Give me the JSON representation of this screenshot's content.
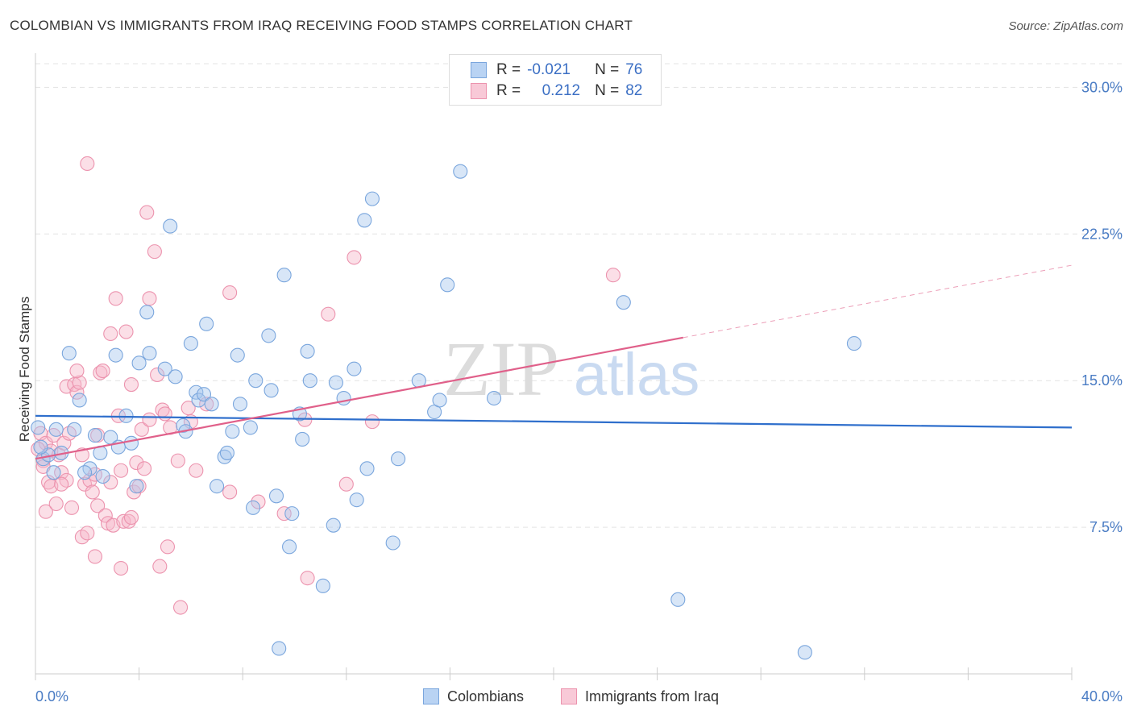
{
  "title": "COLOMBIAN VS IMMIGRANTS FROM IRAQ RECEIVING FOOD STAMPS CORRELATION CHART",
  "source": "Source: ZipAtlas.com",
  "watermark": {
    "zip": "ZIP",
    "atlas": "atlas"
  },
  "legend": {
    "rows": [
      {
        "r_label": "R =",
        "r_value": "-0.021",
        "n_label": "N =",
        "n_value": "76"
      },
      {
        "r_label": "R =",
        "r_value": "0.212",
        "n_label": "N =",
        "n_value": "82"
      }
    ]
  },
  "colors": {
    "blue_fill": "#a9c8ee",
    "blue_stroke": "#7aa6dd",
    "blue_line": "#2f6fcc",
    "pink_fill": "#f6b8ca",
    "pink_stroke": "#ec93ae",
    "pink_line": "#e0608a",
    "label_blue": "#4a7cc4",
    "grid": "#e3e3e3"
  },
  "chart_data": {
    "type": "scatter",
    "title": "COLOMBIAN VS IMMIGRANTS FROM IRAQ RECEIVING FOOD STAMPS CORRELATION CHART",
    "xlabel": "",
    "ylabel": "Receiving Food Stamps",
    "xlim": [
      0,
      40
    ],
    "ylim": [
      0,
      31.5
    ],
    "x_tick_labels": [
      "0.0%",
      "40.0%"
    ],
    "y_ticks": [
      7.5,
      15.0,
      22.5,
      30.0
    ],
    "y_tick_labels": [
      "7.5%",
      "15.0%",
      "22.5%",
      "30.0%"
    ],
    "grid": true,
    "series": [
      {
        "name": "Colombians",
        "r": -0.021,
        "n": 76,
        "trend": {
          "x": [
            0,
            40
          ],
          "y": [
            13.2,
            12.6
          ]
        },
        "points": [
          [
            0.1,
            12.6
          ],
          [
            0.3,
            11.0
          ],
          [
            0.5,
            11.2
          ],
          [
            0.7,
            10.3
          ],
          [
            1.0,
            11.3
          ],
          [
            0.8,
            12.5
          ],
          [
            1.3,
            16.4
          ],
          [
            1.7,
            14.0
          ],
          [
            1.5,
            12.5
          ],
          [
            2.3,
            12.2
          ],
          [
            2.1,
            10.5
          ],
          [
            1.9,
            10.3
          ],
          [
            2.5,
            11.3
          ],
          [
            2.6,
            10.1
          ],
          [
            2.9,
            12.1
          ],
          [
            3.1,
            16.3
          ],
          [
            3.2,
            11.6
          ],
          [
            3.5,
            13.2
          ],
          [
            3.7,
            11.8
          ],
          [
            3.9,
            9.6
          ],
          [
            4.0,
            15.9
          ],
          [
            4.4,
            16.4
          ],
          [
            4.3,
            18.5
          ],
          [
            5.0,
            15.6
          ],
          [
            5.2,
            22.9
          ],
          [
            5.4,
            15.2
          ],
          [
            5.7,
            12.7
          ],
          [
            5.8,
            12.4
          ],
          [
            6.0,
            16.9
          ],
          [
            6.2,
            14.4
          ],
          [
            6.3,
            14.0
          ],
          [
            6.5,
            14.3
          ],
          [
            6.8,
            13.8
          ],
          [
            6.6,
            17.9
          ],
          [
            7.0,
            9.6
          ],
          [
            7.3,
            11.1
          ],
          [
            7.4,
            11.3
          ],
          [
            7.6,
            12.4
          ],
          [
            7.8,
            16.3
          ],
          [
            7.9,
            13.8
          ],
          [
            8.3,
            12.6
          ],
          [
            8.4,
            8.5
          ],
          [
            8.5,
            15.0
          ],
          [
            9.0,
            17.3
          ],
          [
            9.1,
            14.5
          ],
          [
            9.3,
            9.1
          ],
          [
            9.6,
            20.4
          ],
          [
            9.8,
            6.5
          ],
          [
            9.9,
            8.2
          ],
          [
            10.2,
            13.3
          ],
          [
            10.3,
            12.0
          ],
          [
            10.5,
            16.5
          ],
          [
            10.6,
            15.0
          ],
          [
            11.1,
            4.5
          ],
          [
            11.5,
            7.6
          ],
          [
            11.6,
            14.9
          ],
          [
            11.9,
            14.1
          ],
          [
            12.3,
            15.6
          ],
          [
            12.4,
            8.9
          ],
          [
            12.8,
            10.5
          ],
          [
            12.7,
            23.2
          ],
          [
            13.0,
            24.3
          ],
          [
            13.8,
            6.7
          ],
          [
            14.0,
            11.0
          ],
          [
            14.8,
            15.0
          ],
          [
            15.4,
            13.4
          ],
          [
            15.6,
            14.0
          ],
          [
            15.9,
            19.9
          ],
          [
            16.4,
            25.7
          ],
          [
            17.7,
            14.1
          ],
          [
            22.7,
            19.0
          ],
          [
            24.8,
            3.8
          ],
          [
            29.7,
            1.1
          ],
          [
            31.6,
            16.9
          ],
          [
            9.4,
            1.3
          ],
          [
            0.2,
            11.6
          ]
        ]
      },
      {
        "name": "Immigrants from Iraq",
        "r": 0.212,
        "n": 82,
        "trend": {
          "x": [
            0,
            25
          ],
          "y": [
            11.0,
            17.2
          ]
        },
        "trend_dashed": {
          "x": [
            25,
            40
          ],
          "y": [
            17.2,
            20.9
          ]
        },
        "points": [
          [
            0.2,
            12.3
          ],
          [
            0.4,
            11.8
          ],
          [
            0.6,
            11.4
          ],
          [
            0.3,
            10.9
          ],
          [
            0.5,
            9.8
          ],
          [
            0.7,
            12.2
          ],
          [
            0.9,
            11.2
          ],
          [
            0.4,
            8.3
          ],
          [
            0.8,
            8.7
          ],
          [
            0.6,
            9.6
          ],
          [
            1.0,
            10.3
          ],
          [
            1.2,
            9.9
          ],
          [
            1.1,
            11.8
          ],
          [
            1.3,
            12.3
          ],
          [
            1.4,
            8.5
          ],
          [
            1.2,
            14.7
          ],
          [
            1.5,
            14.8
          ],
          [
            1.6,
            14.4
          ],
          [
            1.7,
            14.9
          ],
          [
            1.6,
            15.5
          ],
          [
            1.8,
            11.2
          ],
          [
            1.8,
            7.0
          ],
          [
            1.9,
            9.7
          ],
          [
            2.0,
            7.2
          ],
          [
            2.1,
            9.9
          ],
          [
            2.2,
            9.3
          ],
          [
            2.3,
            10.2
          ],
          [
            2.3,
            6.0
          ],
          [
            2.4,
            8.6
          ],
          [
            2.5,
            15.4
          ],
          [
            2.6,
            15.5
          ],
          [
            2.7,
            8.1
          ],
          [
            2.8,
            7.7
          ],
          [
            2.9,
            17.4
          ],
          [
            2.9,
            9.8
          ],
          [
            3.0,
            7.6
          ],
          [
            2.0,
            26.1
          ],
          [
            3.1,
            19.2
          ],
          [
            3.2,
            13.2
          ],
          [
            3.3,
            10.4
          ],
          [
            3.3,
            5.4
          ],
          [
            3.4,
            7.8
          ],
          [
            3.5,
            17.5
          ],
          [
            3.6,
            7.8
          ],
          [
            3.7,
            8.0
          ],
          [
            3.7,
            14.8
          ],
          [
            3.8,
            9.3
          ],
          [
            3.9,
            10.8
          ],
          [
            4.0,
            9.6
          ],
          [
            4.1,
            12.5
          ],
          [
            4.2,
            10.5
          ],
          [
            4.3,
            23.6
          ],
          [
            4.4,
            19.2
          ],
          [
            4.4,
            13.0
          ],
          [
            4.6,
            21.6
          ],
          [
            4.7,
            15.3
          ],
          [
            4.8,
            5.5
          ],
          [
            4.9,
            13.5
          ],
          [
            5.0,
            13.3
          ],
          [
            5.1,
            6.5
          ],
          [
            5.2,
            12.6
          ],
          [
            5.5,
            10.9
          ],
          [
            5.6,
            3.4
          ],
          [
            5.9,
            13.6
          ],
          [
            6.0,
            12.9
          ],
          [
            6.2,
            10.4
          ],
          [
            6.6,
            13.8
          ],
          [
            7.5,
            19.5
          ],
          [
            7.5,
            9.3
          ],
          [
            8.6,
            8.8
          ],
          [
            9.6,
            8.2
          ],
          [
            10.4,
            13.0
          ],
          [
            10.5,
            4.9
          ],
          [
            11.3,
            18.4
          ],
          [
            12.0,
            9.7
          ],
          [
            12.3,
            21.3
          ],
          [
            13.0,
            12.9
          ],
          [
            22.3,
            20.4
          ],
          [
            0.3,
            10.6
          ],
          [
            0.1,
            11.5
          ],
          [
            1.0,
            9.7
          ],
          [
            2.4,
            12.2
          ]
        ]
      }
    ]
  },
  "bottom_legend": {
    "colombians": "Colombians",
    "iraq": "Immigrants from Iraq"
  }
}
